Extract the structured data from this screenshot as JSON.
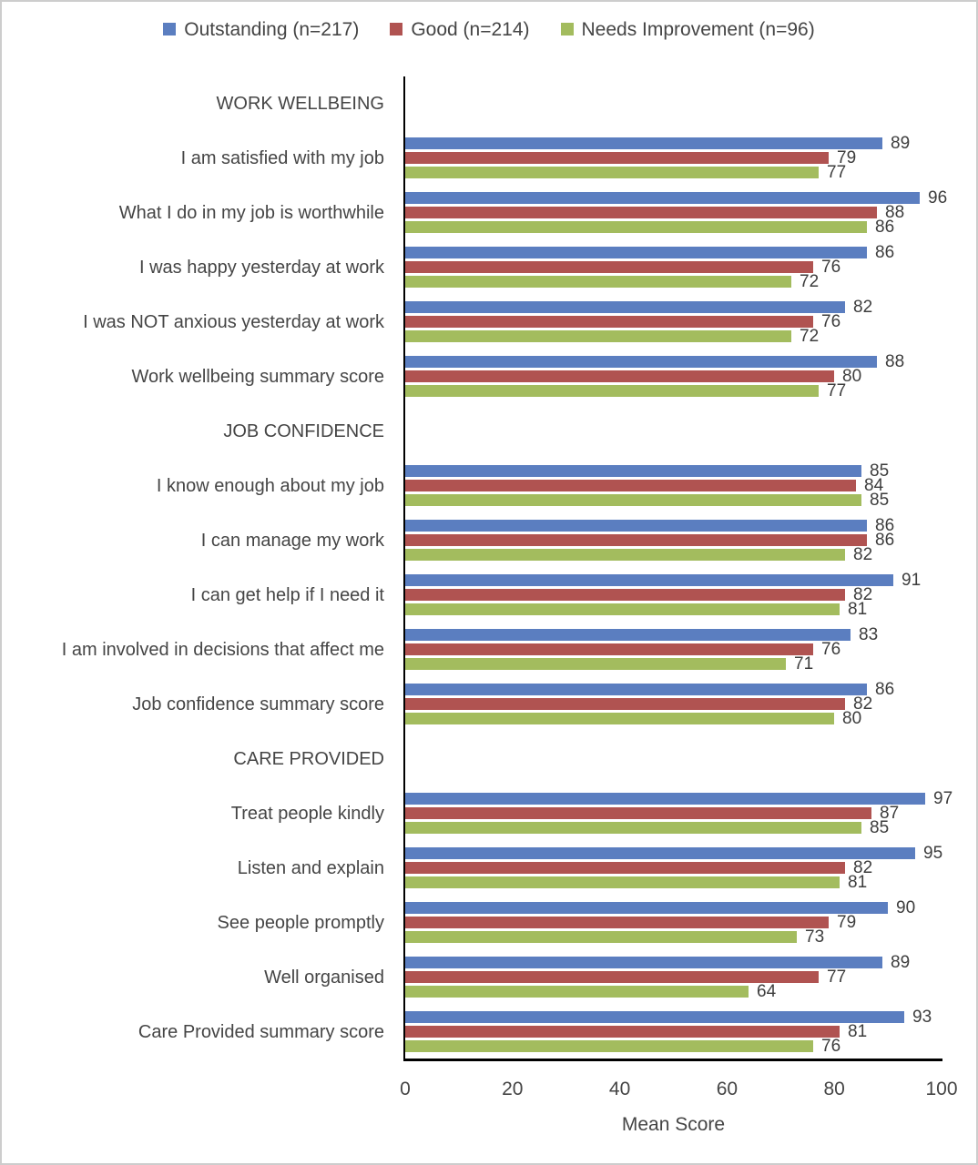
{
  "legend": [
    {
      "label": "Outstanding (n=217)",
      "color": "#5B7EC0",
      "icon": "legend-square-blue"
    },
    {
      "label": "Good (n=214)",
      "color": "#B05351",
      "icon": "legend-square-red"
    },
    {
      "label": "Needs Improvement (n=96)",
      "color": "#A3BC5E",
      "icon": "legend-square-green"
    }
  ],
  "chart_data": {
    "type": "bar",
    "orientation": "horizontal",
    "title": "",
    "xlabel": "Mean Score",
    "ylabel": "",
    "xlim": [
      0,
      100
    ],
    "xticks": [
      0,
      20,
      40,
      60,
      80,
      100
    ],
    "grid": false,
    "legend_position": "top",
    "series_names": [
      "Outstanding (n=217)",
      "Good (n=214)",
      "Needs Improvement (n=96)"
    ],
    "series_colors": [
      "#5B7EC0",
      "#B05351",
      "#A3BC5E"
    ],
    "groups": [
      {
        "section": "WORK WELLBEING",
        "items": [
          {
            "label": "I am satisfied with my job",
            "values": [
              89,
              79,
              77
            ]
          },
          {
            "label": "What I do in my job is worthwhile",
            "values": [
              96,
              88,
              86
            ]
          },
          {
            "label": "I was happy yesterday at work",
            "values": [
              86,
              76,
              72
            ]
          },
          {
            "label": "I was NOT anxious yesterday at work",
            "values": [
              82,
              76,
              72
            ]
          },
          {
            "label": "Work wellbeing summary score",
            "values": [
              88,
              80,
              77
            ]
          }
        ]
      },
      {
        "section": "JOB CONFIDENCE",
        "items": [
          {
            "label": "I know enough about my job",
            "values": [
              85,
              84,
              85
            ]
          },
          {
            "label": "I can manage my work",
            "values": [
              86,
              86,
              82
            ]
          },
          {
            "label": "I can get help if I need it",
            "values": [
              91,
              82,
              81
            ]
          },
          {
            "label": "I am involved in decisions that affect me",
            "values": [
              83,
              76,
              71
            ]
          },
          {
            "label": "Job confidence summary score",
            "values": [
              86,
              82,
              80
            ]
          }
        ]
      },
      {
        "section": "CARE PROVIDED",
        "items": [
          {
            "label": "Treat people kindly",
            "values": [
              97,
              87,
              85
            ]
          },
          {
            "label": "Listen and explain",
            "values": [
              95,
              82,
              81
            ]
          },
          {
            "label": "See people promptly",
            "values": [
              90,
              79,
              73
            ]
          },
          {
            "label": "Well organised",
            "values": [
              89,
              77,
              64
            ]
          },
          {
            "label": "Care Provided summary score",
            "values": [
              93,
              81,
              76
            ]
          }
        ]
      }
    ]
  }
}
